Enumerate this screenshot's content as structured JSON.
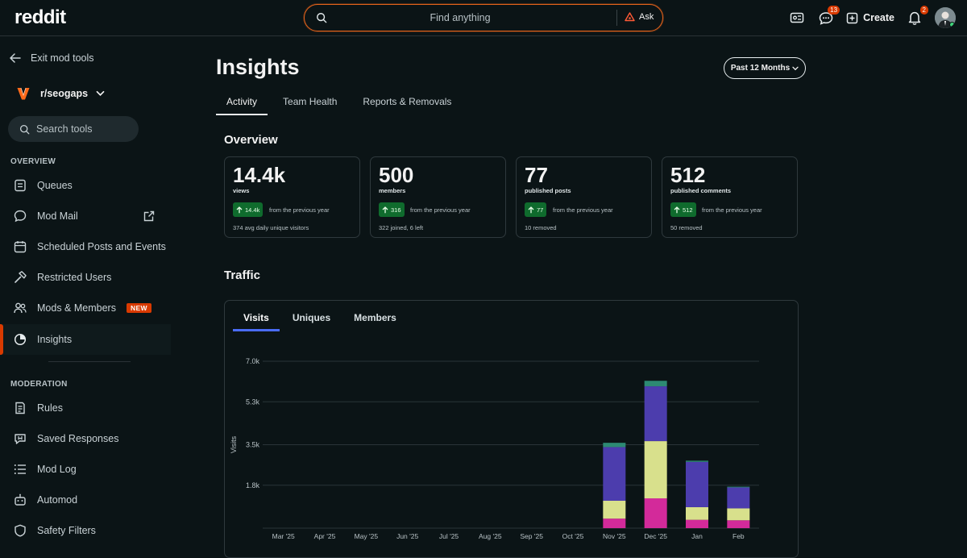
{
  "topbar": {
    "logo": "reddit",
    "search_placeholder": "Find anything",
    "ask_label": "Ask",
    "chat_badge": "13",
    "create_label": "Create",
    "notif_badge": "2"
  },
  "sidebar": {
    "exit_label": "Exit mod tools",
    "subreddit": "r/seogaps",
    "search_placeholder": "Search tools",
    "overview_heading": "OVERVIEW",
    "moderation_heading": "MODERATION",
    "overview_items": [
      {
        "label": "Queues"
      },
      {
        "label": "Mod Mail"
      },
      {
        "label": "Scheduled Posts and Events"
      },
      {
        "label": "Restricted Users"
      },
      {
        "label": "Mods & Members",
        "badge": "NEW"
      },
      {
        "label": "Insights"
      }
    ],
    "moderation_items": [
      {
        "label": "Rules"
      },
      {
        "label": "Saved Responses"
      },
      {
        "label": "Mod Log"
      },
      {
        "label": "Automod"
      },
      {
        "label": "Safety Filters"
      }
    ]
  },
  "main": {
    "title": "Insights",
    "period": "Past 12 Months",
    "tabs": [
      {
        "label": "Activity"
      },
      {
        "label": "Team Health"
      },
      {
        "label": "Reports & Removals"
      }
    ],
    "overview_heading": "Overview",
    "cards": [
      {
        "value": "14.4k",
        "label": "views",
        "change": "14.4k",
        "from": "from the previous year",
        "foot": "374 avg daily unique visitors"
      },
      {
        "value": "500",
        "label": "members",
        "change": "316",
        "from": "from the previous year",
        "foot": "322 joined, 6 left"
      },
      {
        "value": "77",
        "label": "published posts",
        "change": "77",
        "from": "from the previous year",
        "foot": "10 removed"
      },
      {
        "value": "512",
        "label": "published comments",
        "change": "512",
        "from": "from the previous year",
        "foot": "50 removed"
      }
    ],
    "traffic_heading": "Traffic",
    "traffic_tabs": [
      {
        "label": "Visits"
      },
      {
        "label": "Uniques"
      },
      {
        "label": "Members"
      }
    ]
  },
  "colors": {
    "accent": "#d93a00",
    "tab_underline": "#4a6cf7",
    "chip_green": "#0f6b2d"
  },
  "chart_data": {
    "type": "bar",
    "stacked": true,
    "ylabel": "Visits",
    "ylim": [
      0,
      7000
    ],
    "yticks": [
      1800,
      3500,
      5300,
      7000
    ],
    "ytick_labels": [
      "1.8k",
      "3.5k",
      "5.3k",
      "7.0k"
    ],
    "categories": [
      "Mar '25",
      "Apr '25",
      "May '25",
      "Jun '25",
      "Jul '25",
      "Aug '25",
      "Sep '25",
      "Oct '25",
      "Nov '25",
      "Dec '25",
      "Jan",
      "Feb"
    ],
    "series": [
      {
        "name": "segment-1",
        "color": "#d32a9a",
        "values": [
          0,
          0,
          0,
          0,
          0,
          0,
          0,
          0,
          400,
          1250,
          350,
          330
        ]
      },
      {
        "name": "segment-2",
        "color": "#d8e08c",
        "values": [
          0,
          0,
          0,
          0,
          0,
          0,
          0,
          0,
          750,
          2400,
          530,
          500
        ]
      },
      {
        "name": "segment-3",
        "color": "#4c3dad",
        "values": [
          0,
          0,
          0,
          0,
          0,
          0,
          0,
          0,
          2250,
          2300,
          1900,
          880
        ]
      },
      {
        "name": "segment-4",
        "color": "#2d8a73",
        "values": [
          0,
          0,
          0,
          0,
          0,
          0,
          0,
          0,
          180,
          230,
          50,
          30
        ]
      }
    ]
  }
}
